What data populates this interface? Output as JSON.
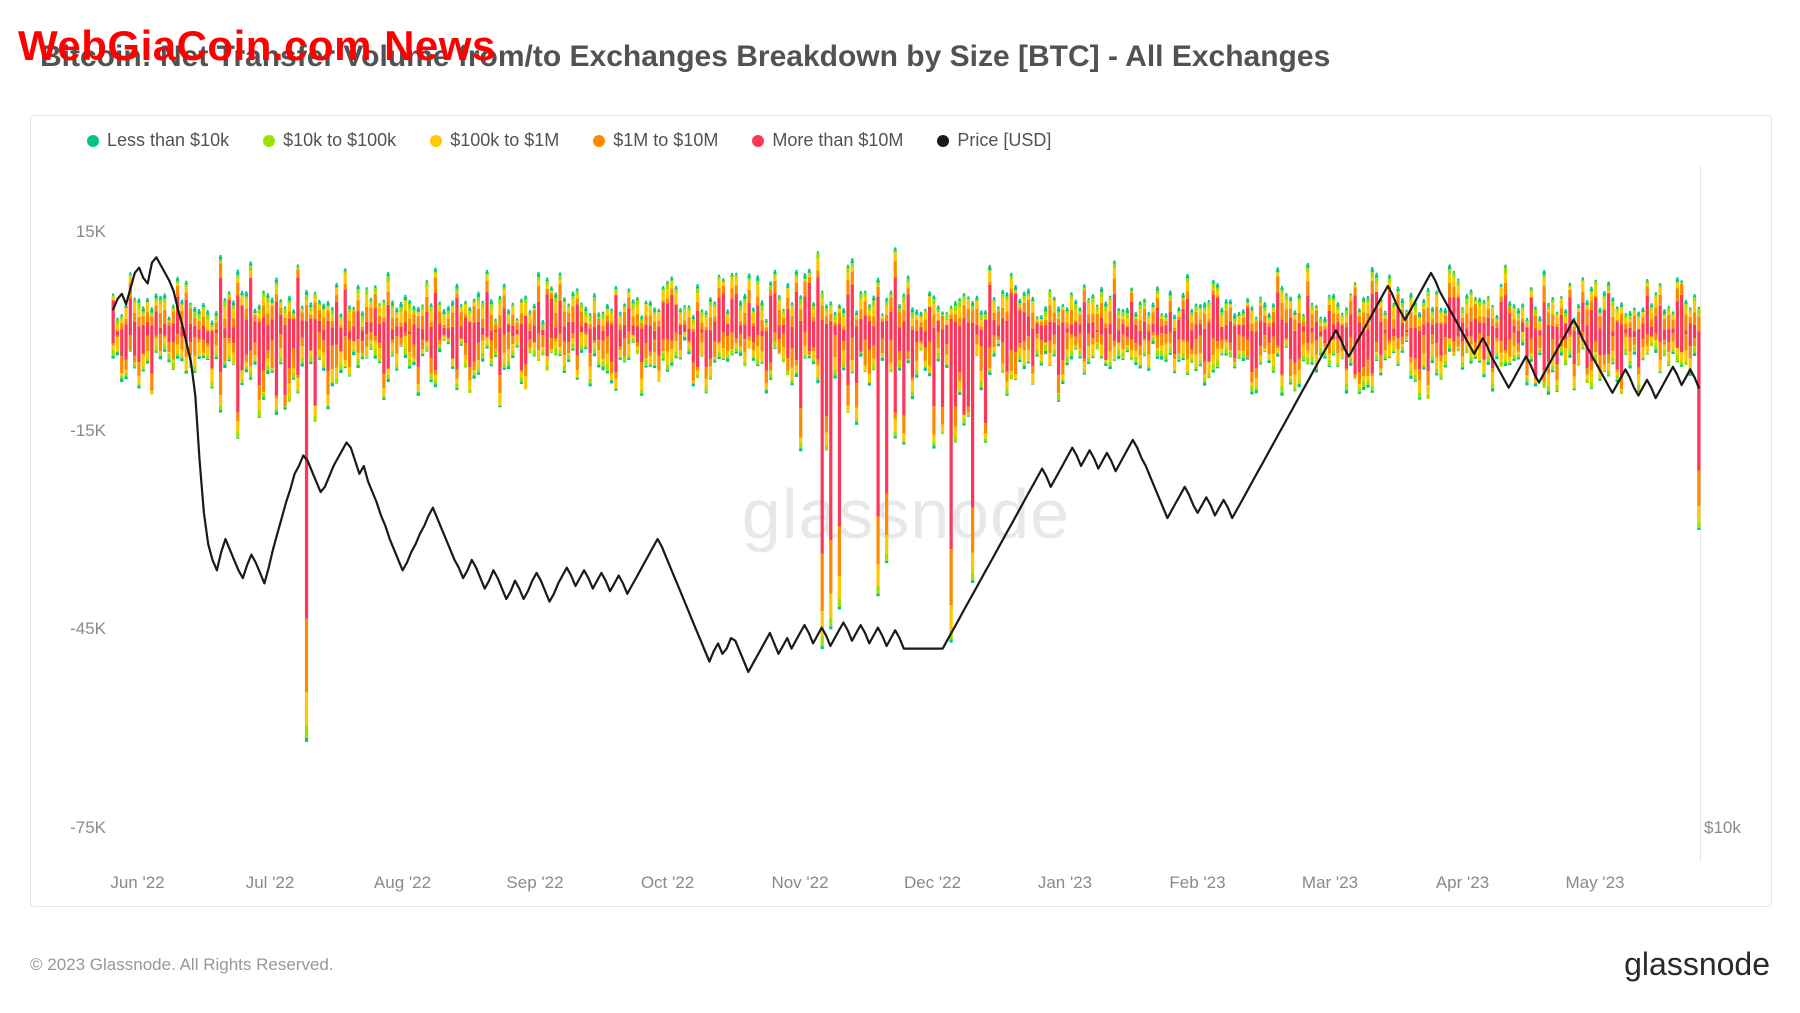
{
  "overlay_text": "WebGiaCoin.com News",
  "title": "Bitcoin: Net Transfer Volume from/to Exchanges Breakdown by Size [BTC] - All Exchanges",
  "copyright": "© 2023 Glassnode. All Rights Reserved.",
  "brand": "glassnode",
  "center_watermark": "glassnode",
  "chart": {
    "type": "stacked-bar-with-line",
    "background_color": "#ffffff",
    "border_color": "#e5e5e5",
    "grid": false,
    "y_axis_left": {
      "min": -80000,
      "max": 25000,
      "ticks": [
        {
          "value": 15000,
          "label": "15K"
        },
        {
          "value": -15000,
          "label": "-15K"
        },
        {
          "value": -45000,
          "label": "-45K"
        },
        {
          "value": -75000,
          "label": "-75K"
        }
      ],
      "tick_color": "#8a8a8a",
      "tick_fontsize": 17
    },
    "y_axis_right": {
      "ticks": [
        {
          "value": -75000,
          "label": "$10k"
        }
      ],
      "tick_color": "#8a8a8a",
      "tick_fontsize": 17
    },
    "x_axis": {
      "labels": [
        "Jun '22",
        "Jul '22",
        "Aug '22",
        "Sep '22",
        "Oct '22",
        "Nov '22",
        "Dec '22",
        "Jan '23",
        "Feb '23",
        "Mar '23",
        "Apr '23",
        "May '23"
      ],
      "tick_color": "#8a8a8a",
      "tick_fontsize": 17
    },
    "legend": [
      {
        "label": "Less than $10k",
        "color": "#00c48c"
      },
      {
        "label": "$10k to $100k",
        "color": "#9be100"
      },
      {
        "label": "$100k to $1M",
        "color": "#ffc800"
      },
      {
        "label": "$1M to $10M",
        "color": "#ff8a00"
      },
      {
        "label": "More than $10M",
        "color": "#ff3658"
      },
      {
        "label": "Price [USD]",
        "color": "#1a1a1a"
      }
    ],
    "legend_fontsize": 18,
    "line_width": 2.2,
    "bar_width": 0.65,
    "n_days": 370,
    "series_colors": {
      "lt10k": "#00c48c",
      "10k_100k": "#9be100",
      "100k_1m": "#ffc800",
      "1m_10m": "#ff8a00",
      "gt10m": "#ff3658",
      "price": "#1a1a1a"
    },
    "price_line": [
      29800,
      30200,
      30400,
      30000,
      30600,
      31200,
      31400,
      31000,
      30800,
      31600,
      31800,
      31500,
      31200,
      30900,
      30500,
      29800,
      29200,
      28500,
      27800,
      26500,
      24000,
      22000,
      20800,
      20200,
      19800,
      20500,
      21000,
      20600,
      20200,
      19800,
      19500,
      20000,
      20400,
      20100,
      19700,
      19300,
      19900,
      20600,
      21200,
      21800,
      22400,
      22900,
      23500,
      23800,
      24200,
      24000,
      23600,
      23200,
      22800,
      23000,
      23400,
      23800,
      24100,
      24400,
      24700,
      24500,
      24000,
      23500,
      23800,
      23200,
      22800,
      22400,
      21900,
      21500,
      21000,
      20600,
      20200,
      19800,
      20100,
      20500,
      20800,
      21200,
      21500,
      21900,
      22200,
      21800,
      21400,
      21000,
      20600,
      20200,
      19900,
      19500,
      19800,
      20200,
      19900,
      19500,
      19100,
      19400,
      19800,
      19500,
      19100,
      18700,
      19000,
      19400,
      19100,
      18700,
      19000,
      19400,
      19700,
      19400,
      19000,
      18600,
      18900,
      19300,
      19600,
      19900,
      19600,
      19200,
      19500,
      19800,
      19500,
      19100,
      19400,
      19700,
      19400,
      19000,
      19300,
      19600,
      19300,
      18900,
      19200,
      19500,
      19800,
      20100,
      20400,
      20700,
      21000,
      20700,
      20300,
      19900,
      19500,
      19100,
      18700,
      18300,
      17900,
      17500,
      17100,
      16700,
      16300,
      16700,
      17000,
      16600,
      16800,
      17200,
      17100,
      16700,
      16300,
      15900,
      16200,
      16500,
      16800,
      17100,
      17400,
      17000,
      16600,
      16900,
      17200,
      16800,
      17100,
      17400,
      17700,
      17400,
      17000,
      17300,
      17600,
      17300,
      16900,
      17200,
      17500,
      17800,
      17500,
      17100,
      17400,
      17700,
      17400,
      17000,
      17300,
      17600,
      17300,
      16900,
      17200,
      17500,
      17200,
      16800,
      16800,
      16800,
      16800,
      16800,
      16800,
      16800,
      16800,
      16800,
      16800,
      17100,
      17400,
      17700,
      18000,
      18300,
      18600,
      18900,
      19200,
      19500,
      19800,
      20100,
      20400,
      20700,
      21000,
      21300,
      21600,
      21900,
      22200,
      22500,
      22800,
      23100,
      23400,
      23700,
      23400,
      23000,
      23300,
      23600,
      23900,
      24200,
      24500,
      24200,
      23800,
      24100,
      24400,
      24100,
      23700,
      24000,
      24300,
      24000,
      23600,
      23900,
      24200,
      24500,
      24800,
      24500,
      24100,
      23800,
      23400,
      23000,
      22600,
      22200,
      21800,
      22100,
      22400,
      22700,
      23000,
      22700,
      22300,
      22000,
      22300,
      22600,
      22300,
      21900,
      22200,
      22500,
      22200,
      21800,
      22100,
      22400,
      22700,
      23000,
      23300,
      23600,
      23900,
      24200,
      24500,
      24800,
      25100,
      25400,
      25700,
      26000,
      26300,
      26600,
      26900,
      27200,
      27500,
      27800,
      28100,
      28400,
      28700,
      29000,
      28700,
      28300,
      28000,
      28300,
      28600,
      28900,
      29200,
      29500,
      29800,
      30100,
      30400,
      30700,
      30400,
      30000,
      29700,
      29400,
      29700,
      30000,
      30300,
      30600,
      30900,
      31200,
      30900,
      30500,
      30200,
      29900,
      29600,
      29300,
      29000,
      28700,
      28400,
      28100,
      28400,
      28700,
      28400,
      28000,
      27700,
      27400,
      27100,
      26800,
      27100,
      27400,
      27700,
      28000,
      27700,
      27300,
      27000,
      27300,
      27600,
      27900,
      28200,
      28500,
      28800,
      29100,
      29400,
      29100,
      28700,
      28400,
      28100,
      27800,
      27500,
      27200,
      26900,
      26600,
      26900,
      27200,
      27500,
      27200,
      26800,
      26500,
      26800,
      27100,
      26800,
      26400,
      26700,
      27000,
      27300,
      27600,
      27300,
      26900,
      27200,
      27500,
      27200,
      26800
    ],
    "price_y_min": 15000,
    "price_y_max": 32000,
    "special_events": [
      {
        "day": 45,
        "magnitude": -62000
      },
      {
        "day": 165,
        "magnitude": -48000
      },
      {
        "day": 167,
        "magnitude": -45000
      },
      {
        "day": 169,
        "magnitude": -42000
      },
      {
        "day": 178,
        "magnitude": -40000
      },
      {
        "day": 180,
        "magnitude": -35000
      },
      {
        "day": 195,
        "magnitude": -47000
      },
      {
        "day": 200,
        "magnitude": -38000
      },
      {
        "day": 369,
        "magnitude": -30000
      }
    ]
  }
}
